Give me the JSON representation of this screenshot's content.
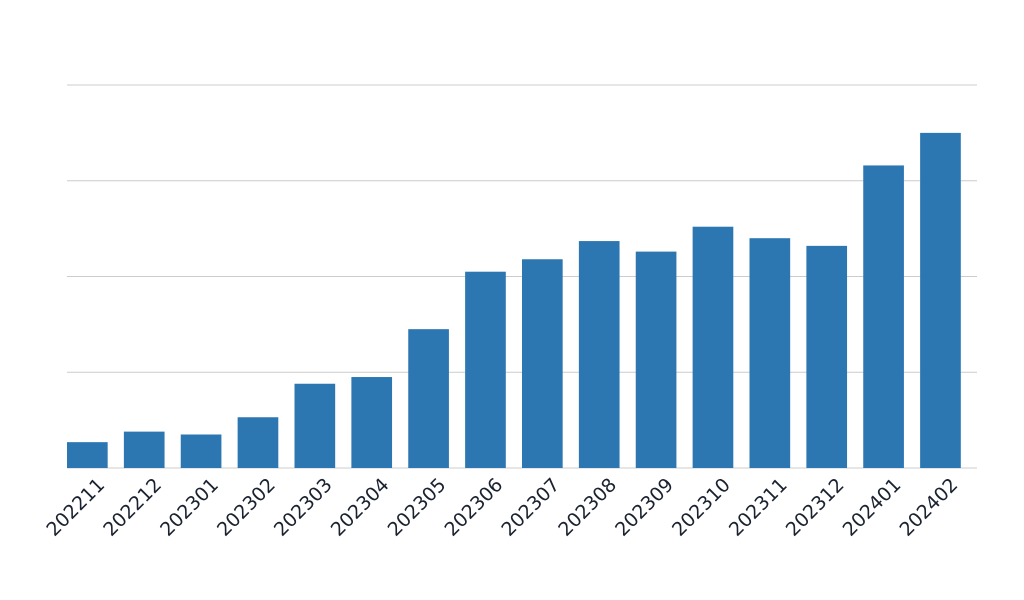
{
  "chart_data": {
    "type": "bar",
    "title": "",
    "xlabel": "",
    "ylabel": "",
    "categories": [
      "202211",
      "202212",
      "202301",
      "202302",
      "202303",
      "202304",
      "202305",
      "202306",
      "202307",
      "202308",
      "202309",
      "202310",
      "202311",
      "202312",
      "202401",
      "202402"
    ],
    "values": [
      2.7,
      3.8,
      3.5,
      5.3,
      8.8,
      9.5,
      14.5,
      20.5,
      21.8,
      23.7,
      22.6,
      25.2,
      24.0,
      23.2,
      31.6,
      35.0
    ],
    "ylim": [
      0,
      40
    ],
    "yticks": [
      0,
      10,
      20,
      30,
      40
    ],
    "show_y_tick_labels": false,
    "grid": true,
    "legend": "none",
    "bar_color": "#2c77b2",
    "grid_color": "#cccccc",
    "tick_label_color": "#1a2230"
  }
}
